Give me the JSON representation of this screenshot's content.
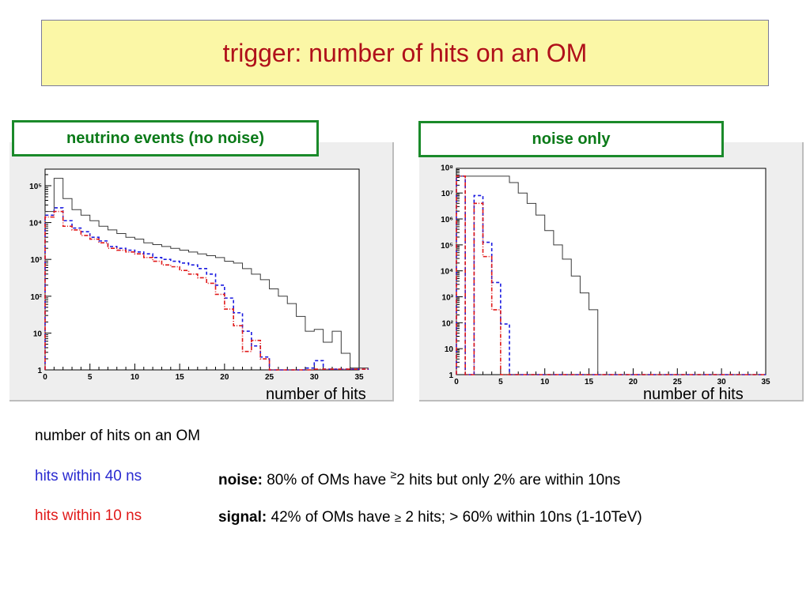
{
  "title": "trigger:  number of hits on an OM",
  "legend": {
    "header": "number of hits on an OM",
    "blue": "hits within 40 ns",
    "red": "hits within 10 ns"
  },
  "notes": {
    "noise_label": "noise:",
    "noise_text_a": " 80% of OMs have ",
    "noise_ge": "≥",
    "noise_text_b": "2 hits but only 2% are within 10ns",
    "signal_label": "signal:",
    "signal_text_a": " 42% of OMs have ",
    "signal_ge": "≥",
    "signal_text_b": " 2 hits; > 60% within 10ns (1-10TeV)"
  },
  "colors": {
    "black": "#3a3a3a",
    "blue": "#1a1ae0",
    "red": "#e01a1a",
    "green": "#1a8a2a",
    "title": "#b0101a"
  },
  "chart_data": [
    {
      "type": "histogram",
      "panel_label": "neutrino events  (no noise)",
      "xlabel": "number of hits",
      "xlim": [
        0,
        35
      ],
      "ylim_log10": [
        0,
        5.45
      ],
      "log_y": true,
      "xticks": [
        "0",
        "5",
        "10",
        "15",
        "20",
        "25",
        "30",
        "35"
      ],
      "yticks": [
        {
          "v": 0,
          "t": "1"
        },
        {
          "v": 1,
          "t": "10"
        },
        {
          "v": 2,
          "t": "10²"
        },
        {
          "v": 3,
          "t": "10³"
        },
        {
          "v": 4,
          "t": "10⁴"
        },
        {
          "v": 5,
          "t": "10⁵"
        }
      ],
      "series": [
        {
          "color": "black",
          "dash": "",
          "log10": [
            4.3,
            5.2,
            4.65,
            4.35,
            4.2,
            4.05,
            3.9,
            3.8,
            3.7,
            3.6,
            3.55,
            3.45,
            3.4,
            3.35,
            3.3,
            3.25,
            3.2,
            3.15,
            3.1,
            3.05,
            2.95,
            2.9,
            2.75,
            2.6,
            2.45,
            2.2,
            2.0,
            1.8,
            1.45,
            1.05,
            1.1,
            0.75,
            1.05,
            0.45,
            0.05,
            0.05
          ]
        },
        {
          "color": "blue",
          "dash": "4,3",
          "log10": [
            4.2,
            4.4,
            4.05,
            3.85,
            3.75,
            3.6,
            3.5,
            3.35,
            3.3,
            3.25,
            3.2,
            3.15,
            3.05,
            3.0,
            2.95,
            2.9,
            2.85,
            2.75,
            2.6,
            2.3,
            1.95,
            1.55,
            1.05,
            0.65,
            0.35,
            0.0,
            0.0,
            0.0,
            0.0,
            0.05,
            0.25,
            0.02,
            0.02,
            0.02,
            0.02,
            0.02
          ]
        },
        {
          "color": "red",
          "dash": "5,2,1,2",
          "log10": [
            4.15,
            4.3,
            3.9,
            3.8,
            3.65,
            3.55,
            3.45,
            3.3,
            3.25,
            3.2,
            3.15,
            3.05,
            2.95,
            2.85,
            2.8,
            2.7,
            2.6,
            2.5,
            2.35,
            2.05,
            1.65,
            1.2,
            0.5,
            0.8,
            0.3,
            0.0,
            0.0,
            0.0,
            0.0,
            0.0,
            0.02,
            0.02,
            0.02,
            0.02,
            0.02,
            0.02
          ]
        }
      ]
    },
    {
      "type": "histogram",
      "panel_label": "noise only",
      "xlabel": "number of hits",
      "xlim": [
        0,
        35
      ],
      "ylim_log10": [
        0,
        7.95
      ],
      "log_y": true,
      "xticks": [
        "0",
        "5",
        "10",
        "15",
        "20",
        "25",
        "30",
        "35"
      ],
      "yticks": [
        {
          "v": 0,
          "t": "1"
        },
        {
          "v": 1,
          "t": "10"
        },
        {
          "v": 2,
          "t": "10²"
        },
        {
          "v": 3,
          "t": "10³"
        },
        {
          "v": 4,
          "t": "10⁴"
        },
        {
          "v": 5,
          "t": "10⁵"
        },
        {
          "v": 6,
          "t": "10⁶"
        },
        {
          "v": 7,
          "t": "10⁷"
        },
        {
          "v": 8,
          "t": "10⁸"
        }
      ],
      "series": [
        {
          "color": "black",
          "dash": "",
          "log10": [
            7.65,
            7.65,
            7.65,
            7.65,
            7.65,
            7.65,
            7.4,
            7.0,
            6.6,
            6.15,
            5.55,
            5.0,
            4.45,
            3.8,
            3.15,
            2.5,
            0.0,
            0.0,
            0.0,
            0.0,
            0.0,
            0.0,
            0.0,
            0.0,
            0.0,
            0.0,
            0.0,
            0.0,
            0.0,
            0.0,
            0.0,
            0.0,
            0.0,
            0.0,
            0.0
          ]
        },
        {
          "color": "blue",
          "dash": "4,3",
          "log10": [
            7.65,
            0.0,
            6.9,
            5.1,
            3.55,
            1.95,
            0.0,
            0.0,
            0.0,
            0.0,
            0.0,
            0.0,
            0.0,
            0.0,
            0.0,
            0.0,
            0.0,
            0.0,
            0.0,
            0.0,
            0.0,
            0.0,
            0.0,
            0.0,
            0.0,
            0.0,
            0.0,
            0.0,
            0.0,
            0.0,
            0.0,
            0.0,
            0.0,
            0.0,
            0.0
          ]
        },
        {
          "color": "red",
          "dash": "5,2,1,2",
          "log10": [
            7.65,
            0.0,
            6.6,
            4.55,
            2.5,
            0.0,
            0.0,
            0.0,
            0.0,
            0.0,
            0.0,
            0.0,
            0.0,
            0.0,
            0.0,
            0.0,
            0.0,
            0.0,
            0.0,
            0.0,
            0.0,
            0.0,
            0.0,
            0.0,
            0.0,
            0.0,
            0.0,
            0.0,
            0.0,
            0.0,
            0.0,
            0.0,
            0.0,
            0.0,
            0.0
          ]
        }
      ]
    }
  ]
}
